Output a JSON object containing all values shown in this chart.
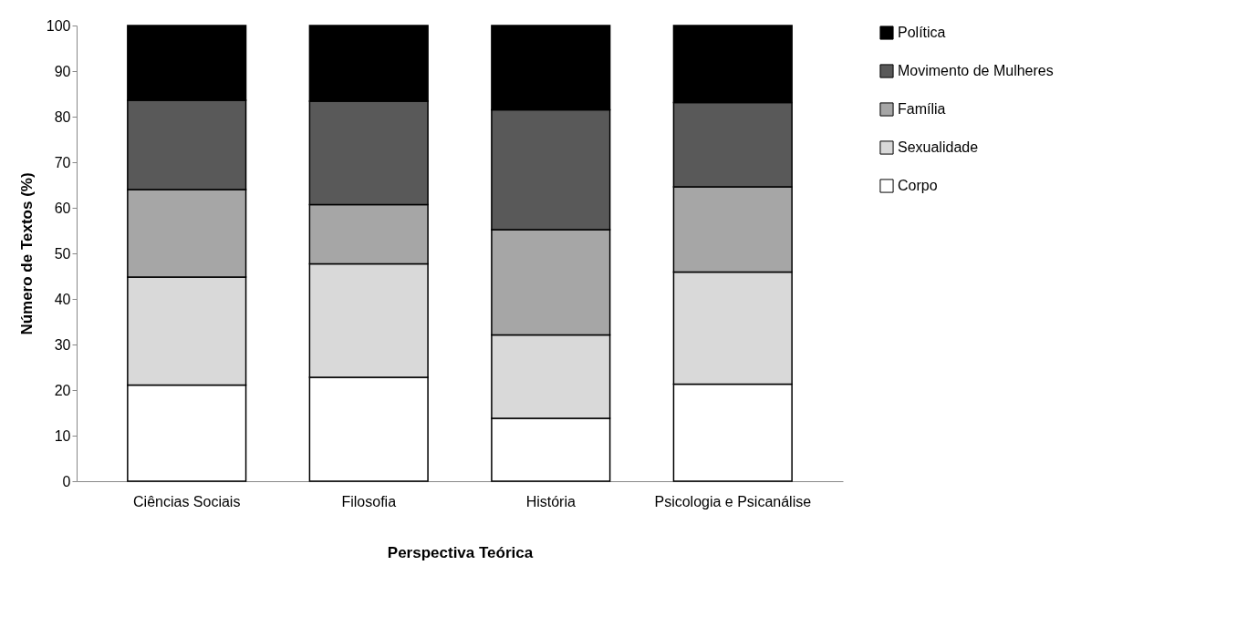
{
  "chart_data": {
    "type": "bar",
    "stacked": true,
    "xlabel": "Perspectiva Teórica",
    "ylabel": "Número de Textos (%)",
    "categories": [
      "Ciências Sociais",
      "Filosofia",
      "História",
      "Psicologia e Psicanálise"
    ],
    "series": [
      {
        "name": "Corpo",
        "color": "#ffffff",
        "values": [
          21.1,
          22.8,
          13.8,
          21.3
        ]
      },
      {
        "name": "Sexualidade",
        "color": "#d9d9d9",
        "values": [
          23.7,
          24.9,
          18.3,
          24.6
        ]
      },
      {
        "name": "Família",
        "color": "#a6a6a6",
        "values": [
          19.2,
          13.0,
          23.1,
          18.7
        ]
      },
      {
        "name": "Movimento de Mulheres",
        "color": "#595959",
        "values": [
          19.6,
          22.7,
          26.3,
          18.5
        ]
      },
      {
        "name": "Política",
        "color": "#000000",
        "values": [
          16.4,
          16.6,
          18.5,
          16.9
        ]
      }
    ],
    "ylim": [
      0,
      100
    ],
    "yticks": [
      0,
      10,
      20,
      30,
      40,
      50,
      60,
      70,
      80,
      90,
      100
    ],
    "grid": false,
    "legend": "right"
  }
}
